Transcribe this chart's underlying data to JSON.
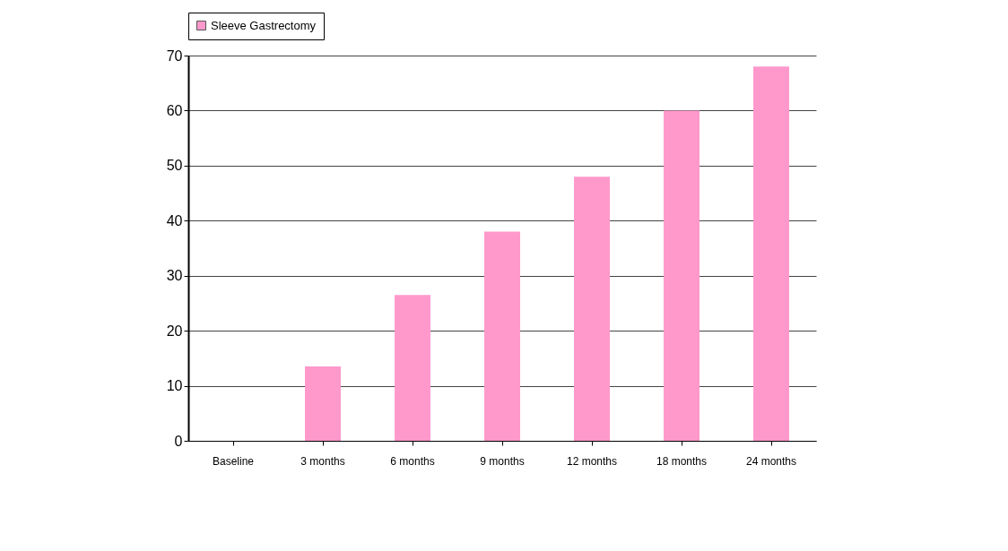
{
  "chart_data": {
    "type": "bar",
    "categories": [
      "Baseline",
      "3 months",
      "6 months",
      "9 months",
      "12 months",
      "18 months",
      "24 months"
    ],
    "series": [
      {
        "name": "Sleeve Gastrectomy",
        "color": "#ff99cc",
        "values": [
          0,
          13.5,
          26.5,
          38,
          48,
          60,
          68
        ]
      }
    ],
    "ylim": [
      0,
      70
    ],
    "yticks": [
      0,
      10,
      20,
      30,
      40,
      50,
      60,
      70
    ],
    "grid": "y",
    "legend": "top"
  }
}
